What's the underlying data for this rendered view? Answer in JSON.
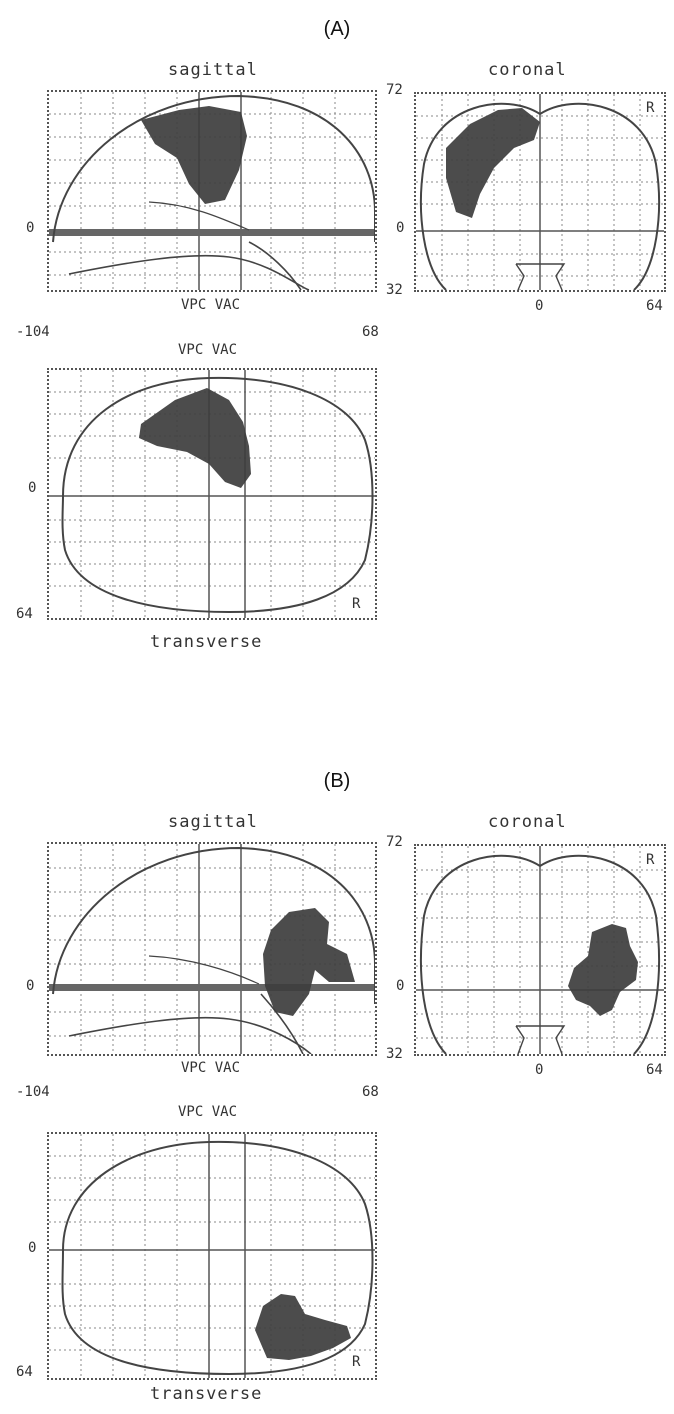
{
  "panels": [
    {
      "letter": "(A)",
      "labels": {
        "sagittal": "sagittal",
        "coronal": "coronal",
        "transverse": "transverse",
        "vpc_vac_top": "VPC VAC",
        "vpc_vac_bottom": "VPC VAC",
        "sag_zero": "0",
        "cor_top": "72",
        "cor_zero": "0",
        "cor_bottom": "32",
        "cor_xzero": "0",
        "cor_xright": "64",
        "cor_r": "R",
        "tr_left": "-104",
        "tr_right": "68",
        "tr_zero": "0",
        "tr_bottom": "64",
        "tr_r": "R"
      }
    },
    {
      "letter": "(B)",
      "labels": {
        "sagittal": "sagittal",
        "coronal": "coronal",
        "transverse": "transverse",
        "vpc_vac_top": "VPC VAC",
        "vpc_vac_bottom": "VPC VAC",
        "sag_zero": "0",
        "cor_top": "72",
        "cor_zero": "0",
        "cor_bottom": "32",
        "cor_xzero": "0",
        "cor_xright": "64",
        "cor_r": "R",
        "tr_left": "-104",
        "tr_right": "68",
        "tr_zero": "0",
        "tr_bottom": "64",
        "tr_r": "R"
      }
    }
  ],
  "colors": {
    "blob": "#3d3d3d",
    "grid": "#8a8a8a",
    "outline": "#444444"
  }
}
